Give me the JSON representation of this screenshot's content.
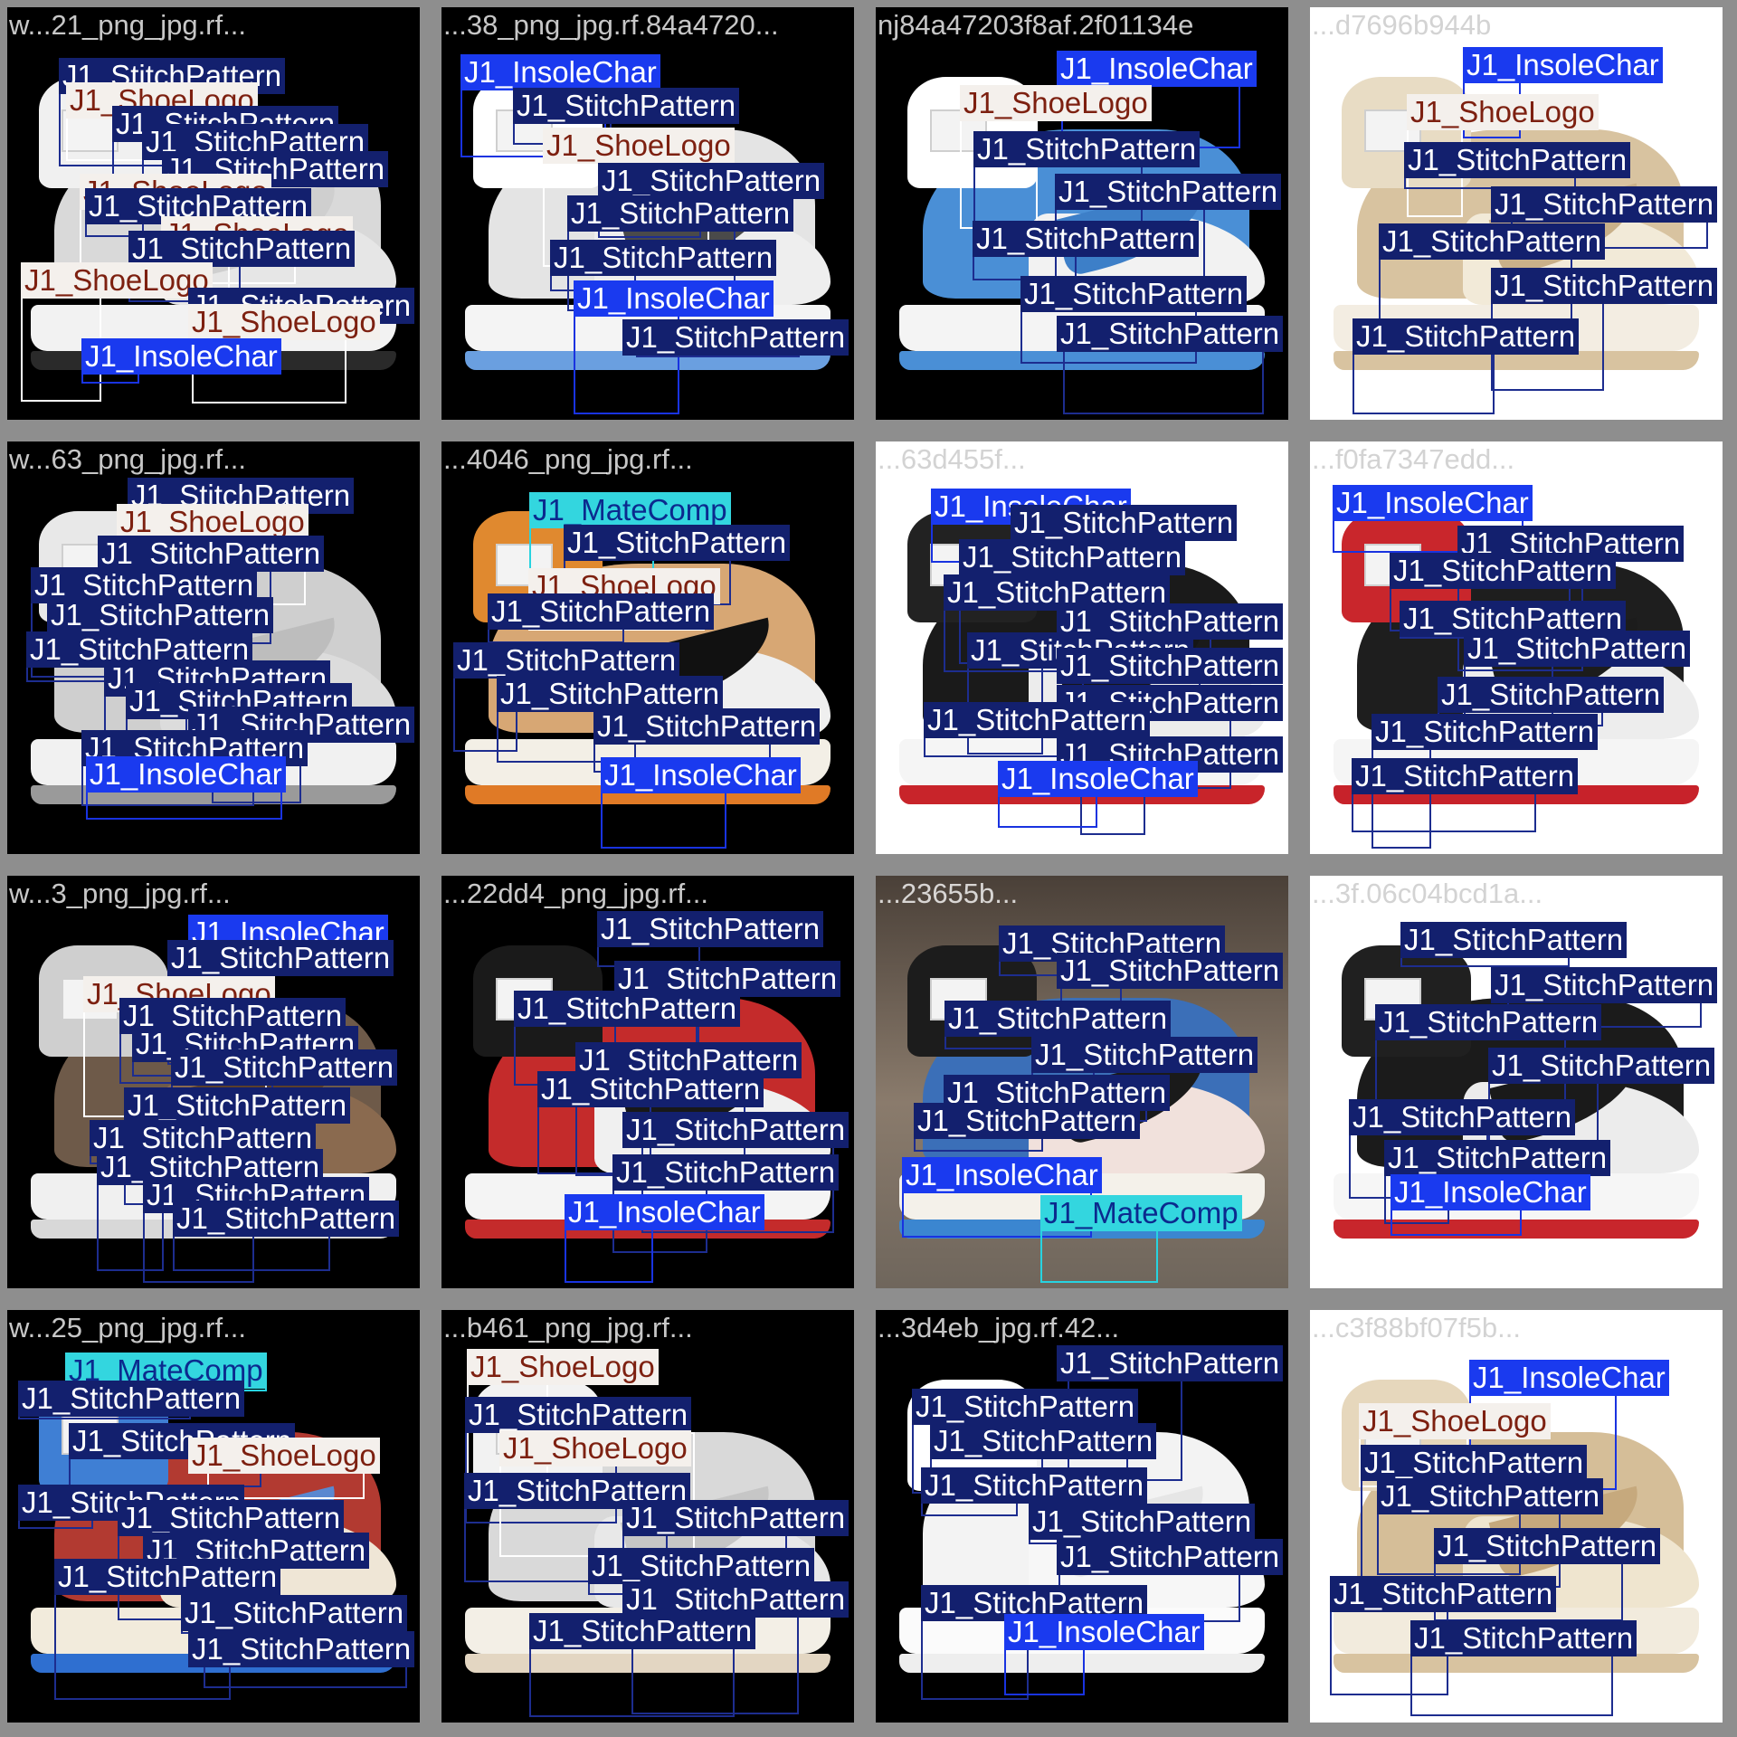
{
  "classes": {
    "stitch": "J1_StitchPattern",
    "logo": "J1_ShoeLogo",
    "insole": "J1_InsoleChar",
    "mate": "J1_MateComp"
  },
  "colors": {
    "stitch_label_bg": "#13206e",
    "stitch_box": "#1d2d8f",
    "insole_label_bg": "#1a3aef",
    "logo_label_bg": "#f4f0ec",
    "logo_label_text": "#7d2010",
    "mate_label_bg": "#33d6df",
    "grid_gap": "#8e8e8e"
  },
  "tiles": [
    {
      "filename": "w...21_png_jpg.rf...",
      "background": "black",
      "shoe": {
        "upper": "#d9d9d9",
        "toe": "#e6e6e6",
        "collar": "#f0f0f0",
        "swoosh": "#cfcfcf",
        "sole": "#f2f2f2",
        "outsole": "#2a2a2a"
      },
      "labels": [
        {
          "cls": "stitch"
        },
        {
          "cls": "logo"
        },
        {
          "cls": "stitch"
        },
        {
          "cls": "stitch"
        },
        {
          "cls": "stitch"
        },
        {
          "cls": "logo"
        },
        {
          "cls": "stitch"
        },
        {
          "cls": "logo"
        },
        {
          "cls": "stitch"
        },
        {
          "cls": "logo"
        },
        {
          "cls": "stitch"
        },
        {
          "cls": "logo"
        },
        {
          "cls": "insole"
        }
      ]
    },
    {
      "filename": "...38_png_jpg.rf.84a4720...",
      "background": "black",
      "shoe": {
        "upper": "#e4e4e4",
        "toe": "#eeeeee",
        "collar": "#ffffff",
        "swoosh": "#4a4a4a",
        "sole": "#f4f4f4",
        "outsole": "#6a9fe0"
      },
      "labels": [
        {
          "cls": "insole"
        },
        {
          "cls": "stitch"
        },
        {
          "cls": "logo"
        },
        {
          "cls": "stitch"
        },
        {
          "cls": "stitch"
        },
        {
          "cls": "stitch"
        },
        {
          "cls": "insole"
        },
        {
          "cls": "stitch"
        }
      ]
    },
    {
      "filename": "nj84a47203f8af.2f01134e",
      "background": "black",
      "shoe": {
        "upper": "#4a8fd6",
        "toe": "#f2f2f2",
        "collar": "#ffffff",
        "swoosh": "#3d7fc8",
        "sole": "#f4f4f4",
        "outsole": "#4a8fd6"
      },
      "labels": [
        {
          "cls": "insole"
        },
        {
          "cls": "logo"
        },
        {
          "cls": "stitch"
        },
        {
          "cls": "stitch"
        },
        {
          "cls": "stitch"
        },
        {
          "cls": "stitch"
        },
        {
          "cls": "stitch"
        }
      ]
    },
    {
      "filename": "...d7696b944b",
      "background": "white",
      "shoe": {
        "upper": "#d8c3a0",
        "toe": "#f2ead8",
        "collar": "#e8dcc4",
        "swoosh": "#c9b089",
        "sole": "#f3ede2",
        "outsole": "#d8c3a0"
      },
      "labels": [
        {
          "cls": "insole"
        },
        {
          "cls": "logo"
        },
        {
          "cls": "stitch"
        },
        {
          "cls": "stitch"
        },
        {
          "cls": "stitch"
        },
        {
          "cls": "stitch"
        },
        {
          "cls": "stitch"
        }
      ]
    },
    {
      "filename": "w...63_png_jpg.rf...",
      "background": "black",
      "shoe": {
        "upper": "#cfcfcf",
        "toe": "#dcdcdc",
        "collar": "#e8e8e8",
        "swoosh": "#bdbdbd",
        "sole": "#f1f1f1",
        "outsole": "#9a9a9a"
      },
      "labels": [
        {
          "cls": "stitch"
        },
        {
          "cls": "logo"
        },
        {
          "cls": "stitch"
        },
        {
          "cls": "stitch"
        },
        {
          "cls": "stitch"
        },
        {
          "cls": "stitch"
        },
        {
          "cls": "stitch"
        },
        {
          "cls": "stitch"
        },
        {
          "cls": "stitch"
        },
        {
          "cls": "stitch"
        },
        {
          "cls": "insole"
        }
      ]
    },
    {
      "filename": "...4046_png_jpg.rf...",
      "background": "black",
      "shoe": {
        "upper": "#d7a774",
        "toe": "#efefef",
        "collar": "#e0892f",
        "swoosh": "#111111",
        "sole": "#f3efe6",
        "outsole": "#e07a26"
      },
      "labels": [
        {
          "cls": "mate"
        },
        {
          "cls": "stitch"
        },
        {
          "cls": "logo"
        },
        {
          "cls": "stitch"
        },
        {
          "cls": "stitch"
        },
        {
          "cls": "stitch"
        },
        {
          "cls": "stitch"
        },
        {
          "cls": "insole"
        }
      ]
    },
    {
      "filename": "...63d455f...",
      "background": "white",
      "shoe": {
        "upper": "#1a1a1a",
        "toe": "#ececec",
        "collar": "#222222",
        "swoosh": "#161616",
        "sole": "#f5f5f5",
        "outsole": "#c8242a"
      },
      "labels": [
        {
          "cls": "insole"
        },
        {
          "cls": "stitch"
        },
        {
          "cls": "stitch"
        },
        {
          "cls": "stitch"
        },
        {
          "cls": "stitch"
        },
        {
          "cls": "stitch"
        },
        {
          "cls": "stitch"
        },
        {
          "cls": "stitch"
        },
        {
          "cls": "stitch"
        },
        {
          "cls": "stitch"
        },
        {
          "cls": "insole"
        }
      ]
    },
    {
      "filename": "...f0fa7347edd...",
      "background": "white",
      "shoe": {
        "upper": "#1e1e1e",
        "toe": "#ededed",
        "collar": "#c9262c",
        "swoosh": "#1c1c1c",
        "sole": "#f5f5f5",
        "outsole": "#c7222a"
      },
      "labels": [
        {
          "cls": "insole"
        },
        {
          "cls": "stitch"
        },
        {
          "cls": "stitch"
        },
        {
          "cls": "stitch"
        },
        {
          "cls": "stitch"
        },
        {
          "cls": "stitch"
        },
        {
          "cls": "stitch"
        },
        {
          "cls": "stitch"
        }
      ]
    },
    {
      "filename": "w...3_png_jpg.rf...",
      "background": "black",
      "shoe": {
        "upper": "#6e5a49",
        "toe": "#8a6a4f",
        "collar": "#cfcfcf",
        "swoosh": "#5b3f2a",
        "sole": "#f0f0f0",
        "outsole": "#d8d8d8"
      },
      "labels": [
        {
          "cls": "insole"
        },
        {
          "cls": "stitch"
        },
        {
          "cls": "logo"
        },
        {
          "cls": "stitch"
        },
        {
          "cls": "stitch"
        },
        {
          "cls": "stitch"
        },
        {
          "cls": "stitch"
        },
        {
          "cls": "stitch"
        },
        {
          "cls": "stitch"
        },
        {
          "cls": "stitch"
        },
        {
          "cls": "stitch"
        }
      ]
    },
    {
      "filename": "...22dd4_png_jpg.rf...",
      "background": "black",
      "shoe": {
        "upper": "#c42b2b",
        "toe": "#f0f0f0",
        "collar": "#1a1a1a",
        "swoosh": "#181818",
        "sole": "#f4f4f4",
        "outsole": "#c42b2b"
      },
      "labels": [
        {
          "cls": "stitch"
        },
        {
          "cls": "stitch"
        },
        {
          "cls": "stitch"
        },
        {
          "cls": "stitch"
        },
        {
          "cls": "stitch"
        },
        {
          "cls": "stitch"
        },
        {
          "cls": "stitch"
        },
        {
          "cls": "insole"
        }
      ]
    },
    {
      "filename": "...23655b...",
      "background": "photo",
      "shoe": {
        "upper": "#3b6fb8",
        "toe": "#f1e1dc",
        "collar": "#1c1c1c",
        "swoosh": "#1a1a1a",
        "sole": "#f4f1ea",
        "outsole": "#3b86d0"
      },
      "labels": [
        {
          "cls": "stitch"
        },
        {
          "cls": "stitch"
        },
        {
          "cls": "stitch"
        },
        {
          "cls": "stitch"
        },
        {
          "cls": "stitch"
        },
        {
          "cls": "stitch"
        },
        {
          "cls": "insole"
        },
        {
          "cls": "mate"
        }
      ]
    },
    {
      "filename": "...3f.06c04bcd1a...",
      "background": "white",
      "shoe": {
        "upper": "#1b1b1b",
        "toe": "#ececec",
        "collar": "#202020",
        "swoosh": "#1a1a1a",
        "sole": "#f6f6f6",
        "outsole": "#c8262c"
      },
      "labels": [
        {
          "cls": "stitch"
        },
        {
          "cls": "stitch"
        },
        {
          "cls": "stitch"
        },
        {
          "cls": "stitch"
        },
        {
          "cls": "stitch"
        },
        {
          "cls": "stitch"
        },
        {
          "cls": "insole"
        }
      ]
    },
    {
      "filename": "w...25_png_jpg.rf...",
      "background": "black",
      "shoe": {
        "upper": "#b23a31",
        "toe": "#efe6d6",
        "collar": "#3f7fd4",
        "swoosh": "#5a88d0",
        "sole": "#f2ebdc",
        "outsole": "#2f6fd0"
      },
      "labels": [
        {
          "cls": "mate"
        },
        {
          "cls": "stitch"
        },
        {
          "cls": "stitch"
        },
        {
          "cls": "logo"
        },
        {
          "cls": "stitch"
        },
        {
          "cls": "stitch"
        },
        {
          "cls": "stitch"
        },
        {
          "cls": "stitch"
        },
        {
          "cls": "stitch"
        },
        {
          "cls": "stitch"
        }
      ]
    },
    {
      "filename": "...b461_png_jpg.rf...",
      "background": "black",
      "shoe": {
        "upper": "#d9d9d9",
        "toe": "#e8e8e8",
        "collar": "#f2f2f2",
        "swoosh": "#c6c6c6",
        "sole": "#f3efe6",
        "outsole": "#e3d6c2"
      },
      "labels": [
        {
          "cls": "logo"
        },
        {
          "cls": "stitch"
        },
        {
          "cls": "logo"
        },
        {
          "cls": "stitch"
        },
        {
          "cls": "stitch"
        },
        {
          "cls": "stitch"
        },
        {
          "cls": "stitch"
        },
        {
          "cls": "stitch"
        }
      ]
    },
    {
      "filename": "...3d4eb_jpg.rf.42...",
      "background": "black",
      "shoe": {
        "upper": "#f3f3f3",
        "toe": "#f7f7f7",
        "collar": "#ffffff",
        "swoosh": "#e6e6e6",
        "sole": "#fbfbfb",
        "outsole": "#eeeeee"
      },
      "labels": [
        {
          "cls": "stitch"
        },
        {
          "cls": "stitch"
        },
        {
          "cls": "stitch"
        },
        {
          "cls": "stitch"
        },
        {
          "cls": "stitch"
        },
        {
          "cls": "stitch"
        },
        {
          "cls": "stitch"
        },
        {
          "cls": "insole"
        }
      ]
    },
    {
      "filename": "...c3f88bf07f5b...",
      "background": "white",
      "shoe": {
        "upper": "#d5be98",
        "toe": "#efe5cf",
        "collar": "#e6d7bc",
        "swoosh": "#c6a97d",
        "sole": "#f2ebdd",
        "outsole": "#d8c3a0"
      },
      "labels": [
        {
          "cls": "insole"
        },
        {
          "cls": "logo"
        },
        {
          "cls": "stitch"
        },
        {
          "cls": "stitch"
        },
        {
          "cls": "stitch"
        },
        {
          "cls": "stitch"
        },
        {
          "cls": "stitch"
        }
      ]
    }
  ]
}
